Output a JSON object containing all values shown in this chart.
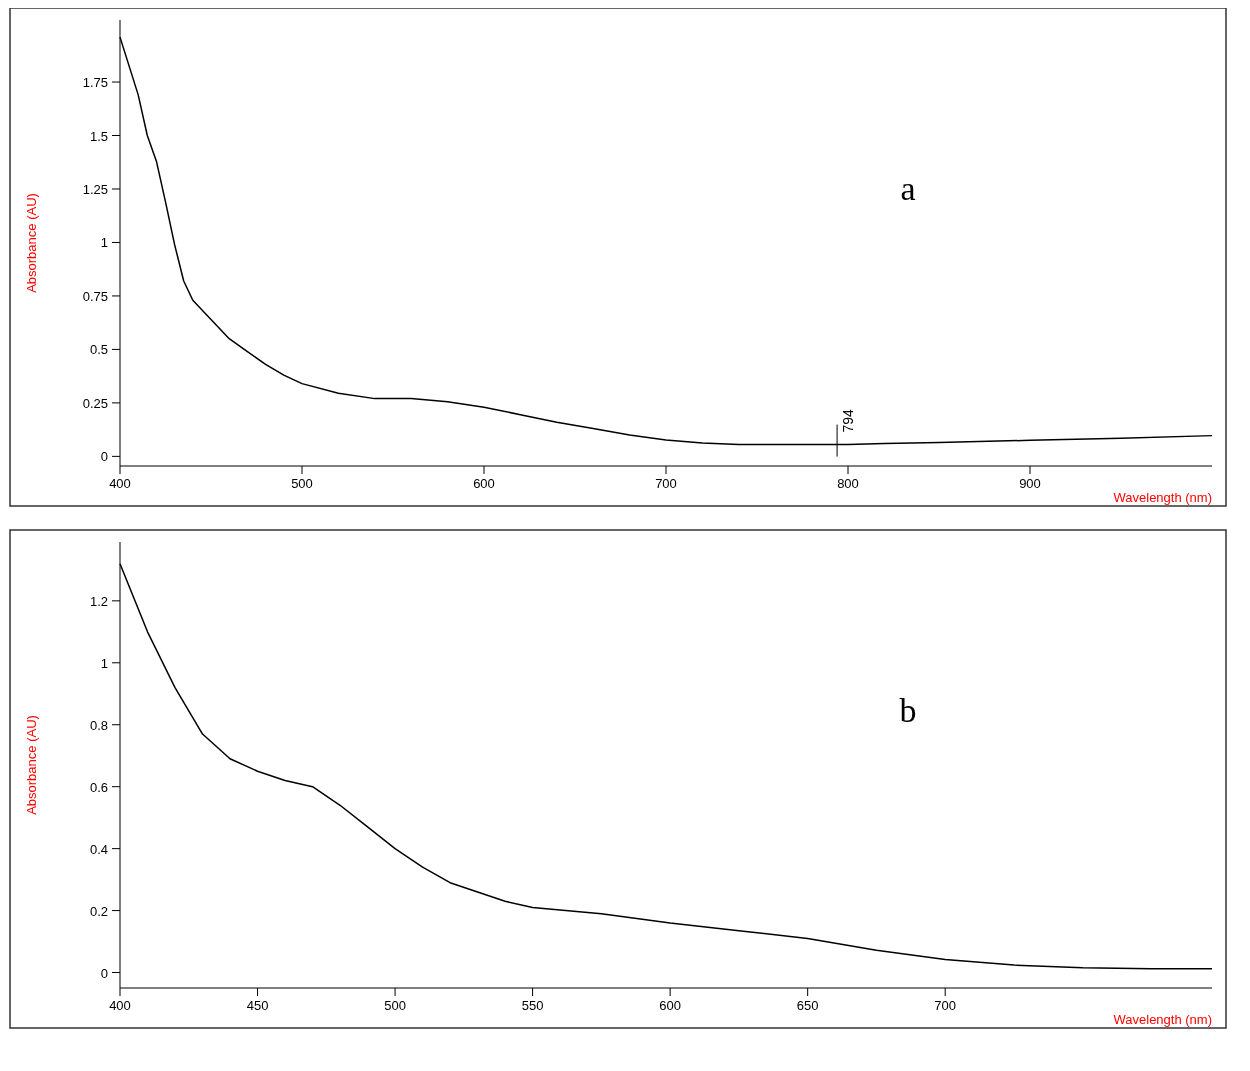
{
  "chart_data": [
    {
      "type": "line",
      "xlabel": "Wavelength (nm)",
      "ylabel": "Absorbance (AU)",
      "xlim": [
        400,
        1000
      ],
      "ylim": [
        -0.045,
        2.04
      ],
      "xticks": [
        400,
        500,
        600,
        700,
        800,
        900
      ],
      "yticks": [
        0,
        0.25,
        0.5,
        0.75,
        1,
        1.25,
        1.5,
        1.75
      ],
      "grid": false,
      "annotations": [
        "a",
        {
          "text": "794",
          "x": 794,
          "y": 0.055
        }
      ],
      "series": [
        {
          "color": "#000000",
          "x": [
            400,
            410,
            415,
            420,
            425,
            430,
            435,
            440,
            450,
            460,
            470,
            480,
            490,
            500,
            520,
            540,
            560,
            580,
            600,
            620,
            640,
            660,
            680,
            700,
            720,
            740,
            760,
            780,
            800,
            820,
            850,
            900,
            950,
            1000
          ],
          "values": [
            1.96,
            1.69,
            1.5,
            1.38,
            1.19,
            0.99,
            0.82,
            0.73,
            0.64,
            0.55,
            0.49,
            0.43,
            0.38,
            0.34,
            0.295,
            0.27,
            0.27,
            0.255,
            0.23,
            0.195,
            0.16,
            0.13,
            0.1,
            0.077,
            0.063,
            0.055,
            0.055,
            0.055,
            0.055,
            0.06,
            0.065,
            0.075,
            0.085,
            0.097
          ]
        }
      ]
    },
    {
      "type": "line",
      "xlabel": "Wavelength (nm)",
      "ylabel": "Absorbance (AU)",
      "xlim": [
        400,
        797
      ],
      "ylim": [
        -0.05,
        1.39
      ],
      "xticks": [
        400,
        450,
        500,
        550,
        600,
        650,
        700
      ],
      "yticks": [
        0,
        0.2,
        0.4,
        0.6,
        0.8,
        1,
        1.2
      ],
      "grid": false,
      "annotations": [
        "b"
      ],
      "series": [
        {
          "color": "#000000",
          "x": [
            400,
            410,
            420,
            430,
            440,
            450,
            460,
            470,
            480,
            490,
            500,
            510,
            520,
            530,
            540,
            550,
            575,
            600,
            625,
            650,
            675,
            700,
            725,
            750,
            775,
            797
          ],
          "values": [
            1.32,
            1.1,
            0.92,
            0.77,
            0.69,
            0.65,
            0.62,
            0.6,
            0.54,
            0.47,
            0.4,
            0.34,
            0.29,
            0.26,
            0.23,
            0.21,
            0.19,
            0.16,
            0.135,
            0.11,
            0.072,
            0.042,
            0.024,
            0.015,
            0.012,
            0.012
          ]
        }
      ]
    }
  ]
}
